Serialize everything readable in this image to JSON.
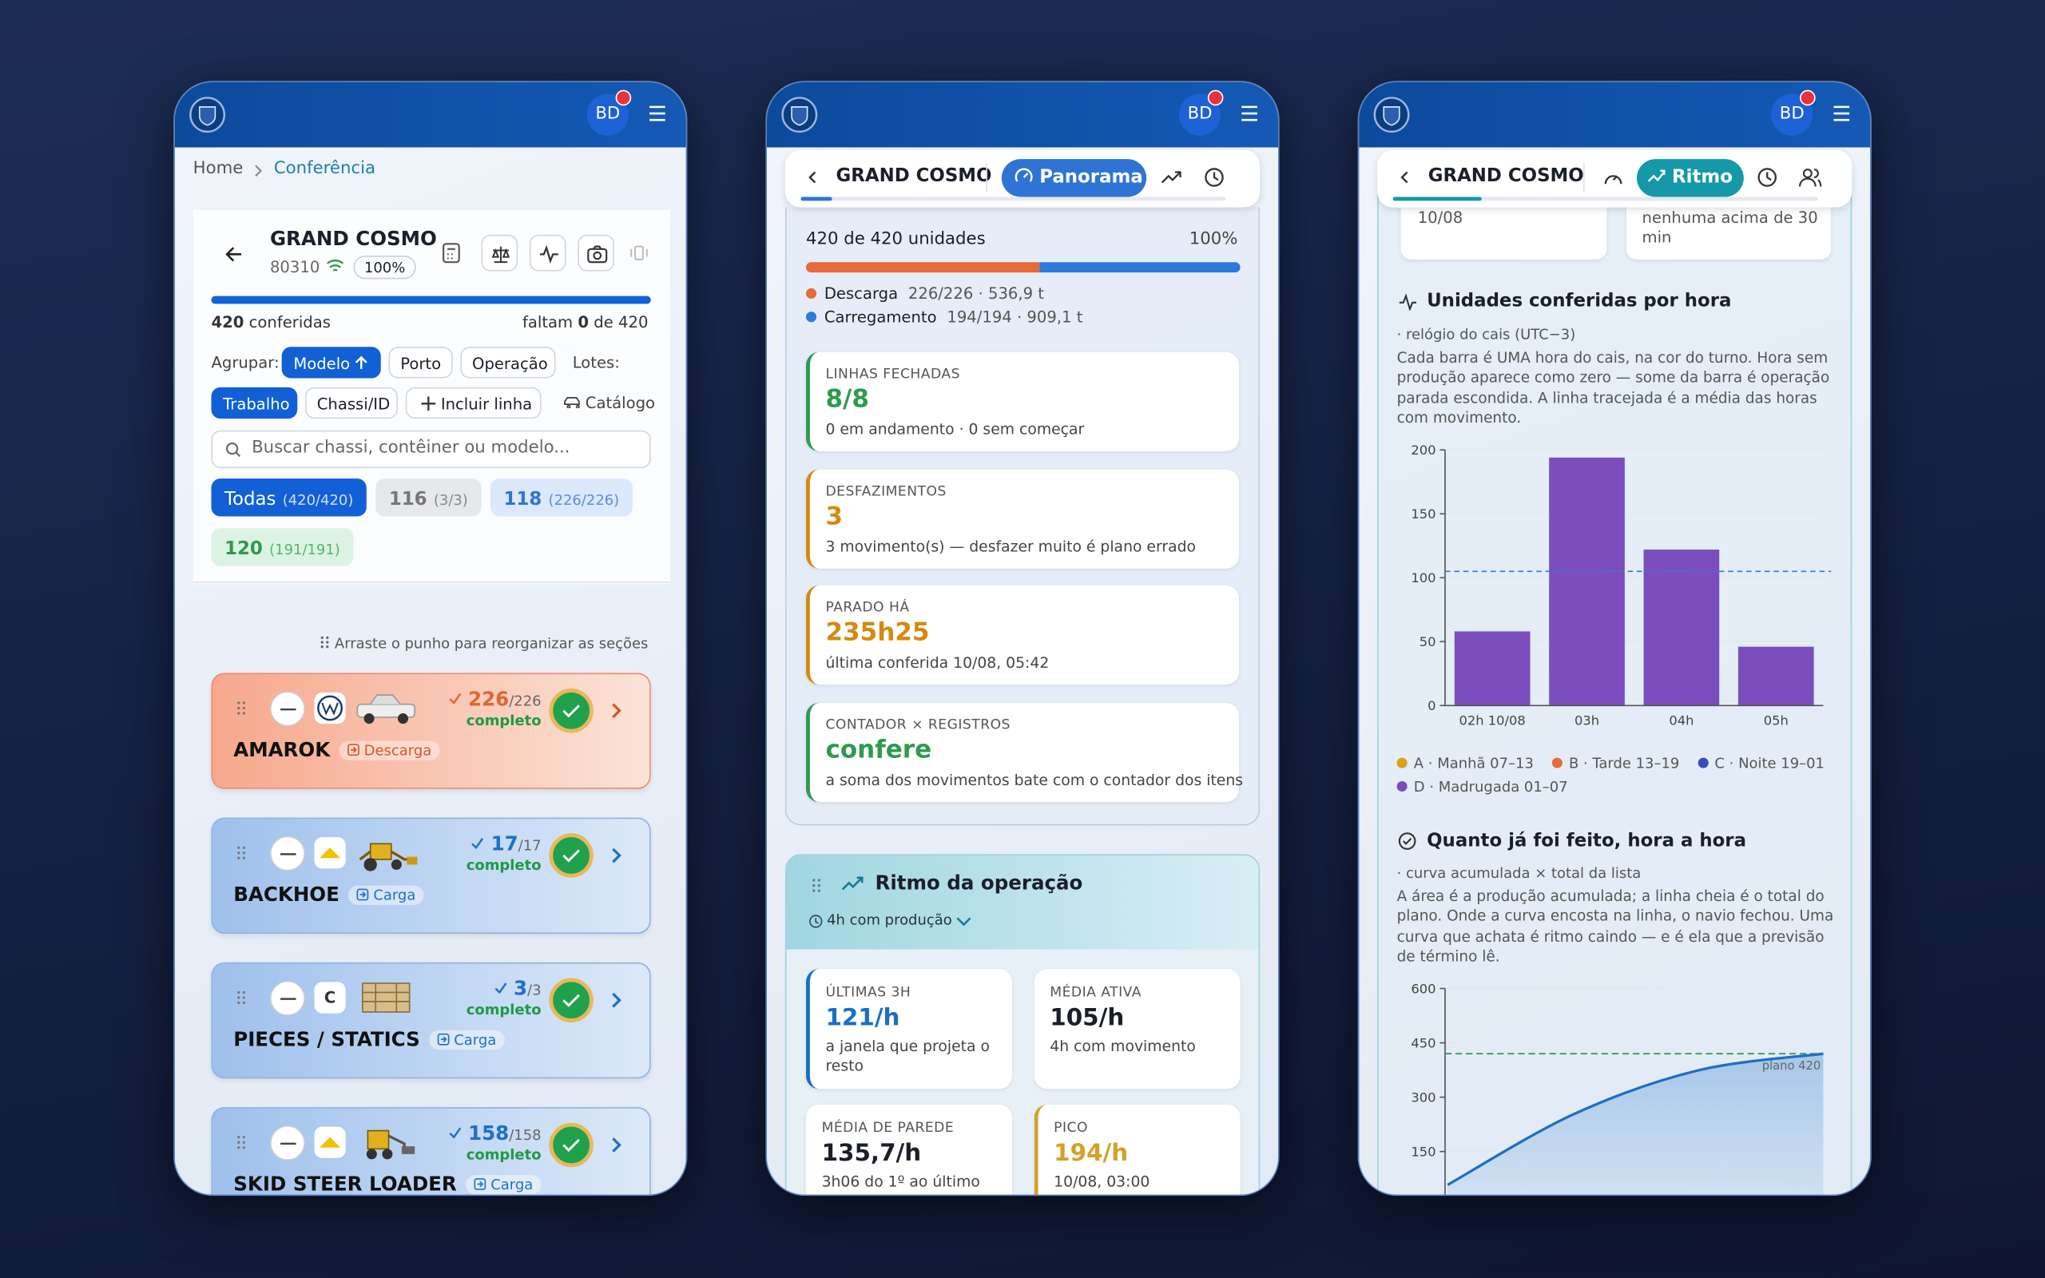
{
  "header": {
    "avatar": "BD"
  },
  "conferencia": {
    "breadcrumb": [
      "Home",
      "Conferência"
    ],
    "ship": {
      "name": "GRAND COSMO",
      "code": "80310",
      "pct": "100%"
    },
    "progress": {
      "done": "420",
      "done_label": "conferidas",
      "left_prefix": "faltam",
      "left": "0",
      "left_mid": "de",
      "total": "420",
      "percent": 100
    },
    "group_label": "Agrupar:",
    "group": [
      "Modelo",
      "Porto",
      "Operação"
    ],
    "lots_label": "Lotes:",
    "actions": [
      "Trabalho",
      "Chassi/ID",
      "Incluir linha",
      "Catálogo"
    ],
    "search": "Buscar chassi, contêiner ou modelo...",
    "filters": [
      {
        "label": "Todas",
        "count": "(420/420)"
      },
      {
        "label": "116",
        "count": "(3/3)"
      },
      {
        "label": "118",
        "count": "(226/226)"
      },
      {
        "label": "120",
        "count": "(191/191)"
      }
    ],
    "hint": "Arraste o punho para reorganizar as seções",
    "items": [
      {
        "name": "AMAROK",
        "operation": "Descarga",
        "done": "226",
        "total": "/226",
        "status": "completo",
        "color": "#e0662f"
      },
      {
        "name": "BACKHOE",
        "operation": "Carga",
        "done": "17",
        "total": "/17",
        "status": "completo",
        "color": "#1e6fc8"
      },
      {
        "name": "PIECES / STATICS",
        "operation": "Carga",
        "done": "3",
        "total": "/3",
        "status": "completo",
        "color": "#1e6fc8",
        "brand": "C"
      },
      {
        "name": "SKID STEER LOADER",
        "operation": "Carga",
        "done": "158",
        "total": "/158",
        "status": "completo",
        "color": "#1e6fc8"
      }
    ]
  },
  "panorama": {
    "ship": "GRAND COSMO",
    "tab": "Panorama",
    "units": "420 de 420 unidades",
    "pct": "100%",
    "split": [
      {
        "name": "Descarga",
        "detail": "226/226 · 536,9 t",
        "value": 226,
        "color": "#e8693a"
      },
      {
        "name": "Carregamento",
        "detail": "194/194 · 909,1 t",
        "value": 194,
        "color": "#2f7ad9"
      }
    ],
    "cards": [
      {
        "label": "LINHAS FECHADAS",
        "value": "8/8",
        "sub": "0 em andamento · 0 sem começar",
        "color": "#2e9a4e"
      },
      {
        "label": "DESFAZIMENTOS",
        "value": "3",
        "sub": "3 movimento(s) — desfazer muito é plano errado",
        "color": "#d68910"
      },
      {
        "label": "PARADO HÁ",
        "value": "235h25",
        "sub": "última conferida 10/08, 05:42",
        "color": "#d68910"
      },
      {
        "label": "CONTADOR × REGISTROS",
        "value": "confere",
        "sub": "a soma dos movimentos bate com o contador dos itens",
        "color": "#2e9a4e"
      }
    ],
    "ritmo": {
      "title": "Ritmo da operação",
      "sub": "4h com produção",
      "stats": [
        {
          "label": "ÚLTIMAS 3H",
          "value": "121/h",
          "sub": "a janela que projeta o resto",
          "color": "#1a6fbf"
        },
        {
          "label": "MÉDIA ATIVA",
          "value": "105/h",
          "sub": "4h com movimento",
          "color": "#1b1f2a"
        },
        {
          "label": "MÉDIA DE PAREDE",
          "value": "135,7/h",
          "sub": "3h06 do 1º ao último",
          "color": "#1b1f2a"
        },
        {
          "label": "PICO",
          "value": "194/h",
          "sub": "10/08, 03:00",
          "color": "#d4a12a"
        }
      ]
    }
  },
  "ritmo": {
    "ship": "GRAND COSMO",
    "tab": "Ritmo",
    "top_cards": [
      "10/08",
      "nenhuma acima de 30 min"
    ]
  },
  "chart_data": [
    {
      "type": "bar",
      "title": "Unidades conferidas por hora",
      "subtitle": "· relógio do cais (UTC−3)",
      "description": "Cada barra é UMA hora do cais, na cor do turno. Hora sem produção aparece como zero — some da barra é operação parada escondida. A linha tracejada é a média das horas com movimento.",
      "categories": [
        "02h 10/08",
        "03h",
        "04h",
        "05h"
      ],
      "values": [
        58,
        194,
        122,
        46
      ],
      "color": "#7c4dbd",
      "ylim": [
        0,
        200
      ],
      "yticks": [
        0,
        50,
        100,
        150,
        200
      ],
      "average": 105,
      "legend": [
        {
          "name": "A · Manhã 07–13",
          "color": "#d9a21b"
        },
        {
          "name": "B · Tarde 13–19",
          "color": "#e8693a"
        },
        {
          "name": "C · Noite 19–01",
          "color": "#3b4cc0"
        },
        {
          "name": "D · Madrugada 01–07",
          "color": "#7c4dbd"
        }
      ]
    },
    {
      "type": "area",
      "title": "Quanto já foi feito, hora a hora",
      "subtitle": "· curva acumulada × total da lista",
      "description": "A área é a produção acumulada; a linha cheia é o total do plano. Onde a curva encosta na linha, o navio fechou. Uma curva que achata é ritmo caindo — e é ela que a previsão de término lê.",
      "categories": [
        null,
        null,
        null,
        null
      ],
      "values": [
        58,
        252,
        374,
        420
      ],
      "color": "#1f6fc2",
      "ylim": [
        0,
        600
      ],
      "yticks": [
        150,
        300,
        450,
        600
      ],
      "plan": {
        "value": 420,
        "label": "plano 420"
      },
      "plan_color": "#3a9a5b"
    }
  ]
}
